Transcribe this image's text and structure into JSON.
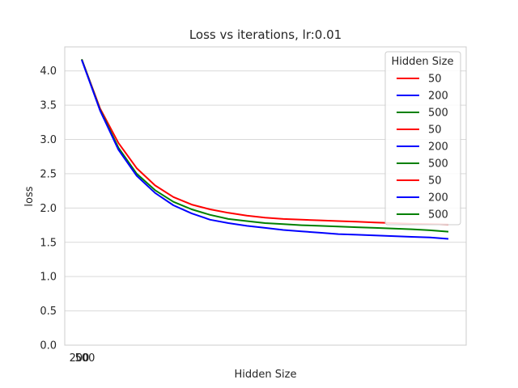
{
  "chart_data": {
    "type": "line",
    "title": "Loss vs iterations, lr:0.01",
    "xlabel": "Hidden Size",
    "ylabel": "loss",
    "ylim": [
      0,
      4.35
    ],
    "yticks": [
      "0.0",
      "0.5",
      "1.0",
      "1.5",
      "2.0",
      "2.5",
      "3.0",
      "3.5",
      "4.0"
    ],
    "xtick_labels": [
      "50",
      "200",
      "500"
    ],
    "grid": true,
    "legend": {
      "title": "Hidden Size",
      "placement": "top-right",
      "entries": [
        {
          "label": "50",
          "color": "#ff0000"
        },
        {
          "label": "200",
          "color": "#0000ff"
        },
        {
          "label": "500",
          "color": "#008000"
        },
        {
          "label": "50",
          "color": "#ff0000"
        },
        {
          "label": "200",
          "color": "#0000ff"
        },
        {
          "label": "500",
          "color": "#008000"
        },
        {
          "label": "50",
          "color": "#ff0000"
        },
        {
          "label": "200",
          "color": "#0000ff"
        },
        {
          "label": "500",
          "color": "#008000"
        }
      ]
    },
    "series": [
      {
        "color": "#ff0000",
        "values": [
          4.17,
          3.45,
          2.95,
          2.58,
          2.33,
          2.16,
          2.05,
          1.98,
          1.93,
          1.89,
          1.86,
          1.84,
          1.83,
          1.82,
          1.81,
          1.8,
          1.79,
          1.78,
          1.77,
          1.765,
          1.76
        ]
      },
      {
        "color": "#008000",
        "values": [
          4.17,
          3.43,
          2.88,
          2.5,
          2.26,
          2.09,
          1.98,
          1.9,
          1.84,
          1.81,
          1.78,
          1.765,
          1.75,
          1.74,
          1.73,
          1.72,
          1.71,
          1.7,
          1.69,
          1.675,
          1.655
        ]
      },
      {
        "color": "#0000ff",
        "values": [
          4.16,
          3.42,
          2.85,
          2.47,
          2.22,
          2.04,
          1.92,
          1.83,
          1.78,
          1.74,
          1.71,
          1.68,
          1.66,
          1.64,
          1.62,
          1.61,
          1.6,
          1.59,
          1.58,
          1.57,
          1.55
        ]
      }
    ]
  }
}
